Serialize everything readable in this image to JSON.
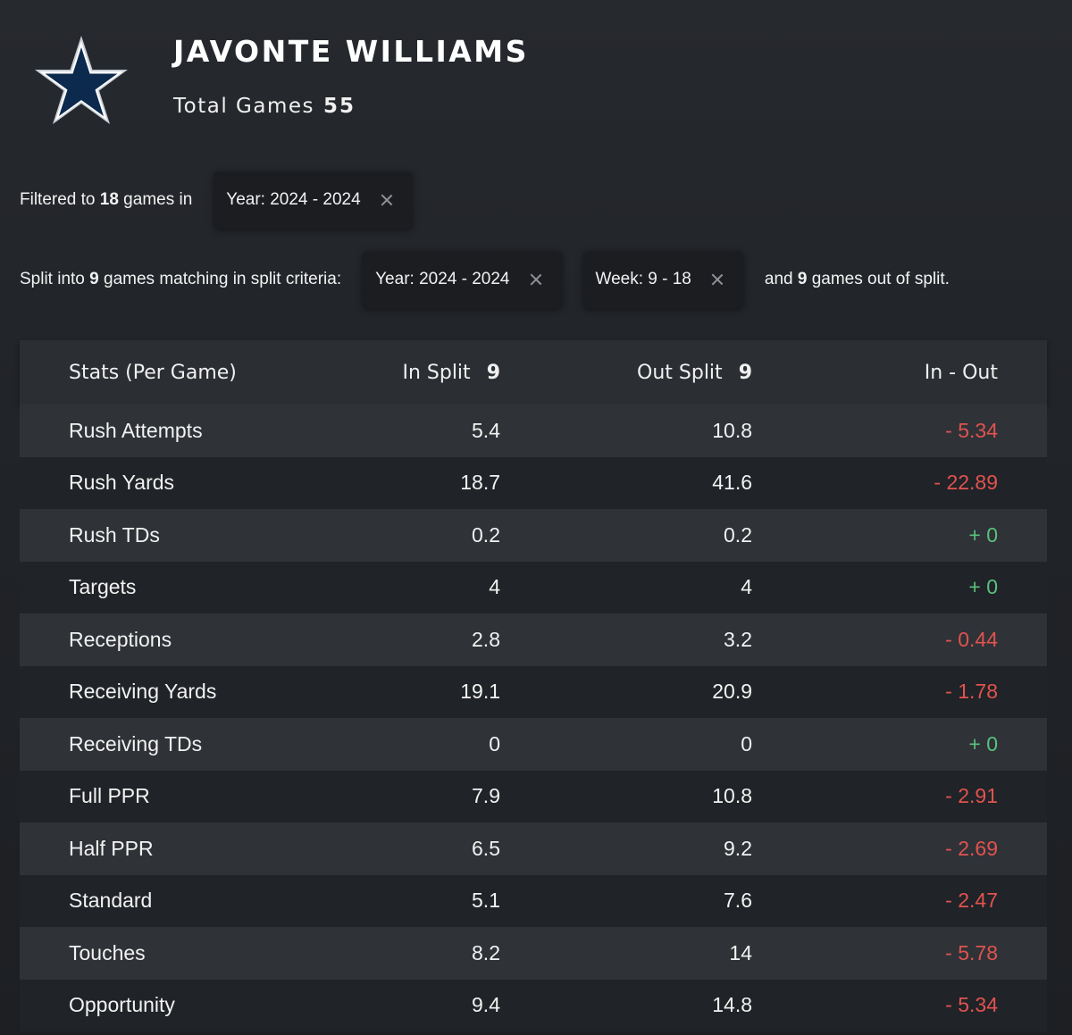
{
  "player": {
    "name": "JAVONTE WILLIAMS",
    "total_games_label": "Total Games",
    "total_games": "55",
    "logo_icon": "star-icon",
    "logo_color": "#0b2a4d"
  },
  "filter": {
    "prefix": "Filtered to ",
    "count": "18",
    "suffix": " games in",
    "chip_label": "Year: 2024 - 2024"
  },
  "split": {
    "prefix": "Split into ",
    "count": "9",
    "middle": " games matching in split criteria:",
    "chips": [
      {
        "label": "Year: 2024 - 2024"
      },
      {
        "label": "Week: 9 - 18"
      }
    ],
    "and_prefix": "and ",
    "out_count": "9",
    "out_suffix": " games out of split."
  },
  "table": {
    "headers": {
      "stat": "Stats (Per Game)",
      "in_split": "In Split",
      "in_split_count": "9",
      "out_split": "Out Split",
      "out_split_count": "9",
      "diff": "In - Out"
    },
    "rows": [
      {
        "stat": "Rush Attempts",
        "in": "5.4",
        "out": "10.8",
        "diff": "- 5.34",
        "sign": "neg"
      },
      {
        "stat": "Rush Yards",
        "in": "18.7",
        "out": "41.6",
        "diff": "- 22.89",
        "sign": "neg"
      },
      {
        "stat": "Rush TDs",
        "in": "0.2",
        "out": "0.2",
        "diff": "+ 0",
        "sign": "pos"
      },
      {
        "stat": "Targets",
        "in": "4",
        "out": "4",
        "diff": "+ 0",
        "sign": "pos"
      },
      {
        "stat": "Receptions",
        "in": "2.8",
        "out": "3.2",
        "diff": "- 0.44",
        "sign": "neg"
      },
      {
        "stat": "Receiving Yards",
        "in": "19.1",
        "out": "20.9",
        "diff": "- 1.78",
        "sign": "neg"
      },
      {
        "stat": "Receiving TDs",
        "in": "0",
        "out": "0",
        "diff": "+ 0",
        "sign": "pos"
      },
      {
        "stat": "Full PPR",
        "in": "7.9",
        "out": "10.8",
        "diff": "- 2.91",
        "sign": "neg"
      },
      {
        "stat": "Half PPR",
        "in": "6.5",
        "out": "9.2",
        "diff": "- 2.69",
        "sign": "neg"
      },
      {
        "stat": "Standard",
        "in": "5.1",
        "out": "7.6",
        "diff": "- 2.47",
        "sign": "neg"
      },
      {
        "stat": "Touches",
        "in": "8.2",
        "out": "14",
        "diff": "- 5.78",
        "sign": "neg"
      },
      {
        "stat": "Opportunity",
        "in": "9.4",
        "out": "14.8",
        "diff": "- 5.34",
        "sign": "neg"
      }
    ],
    "colors": {
      "negative": "#e0534f",
      "positive": "#58c27d"
    }
  }
}
